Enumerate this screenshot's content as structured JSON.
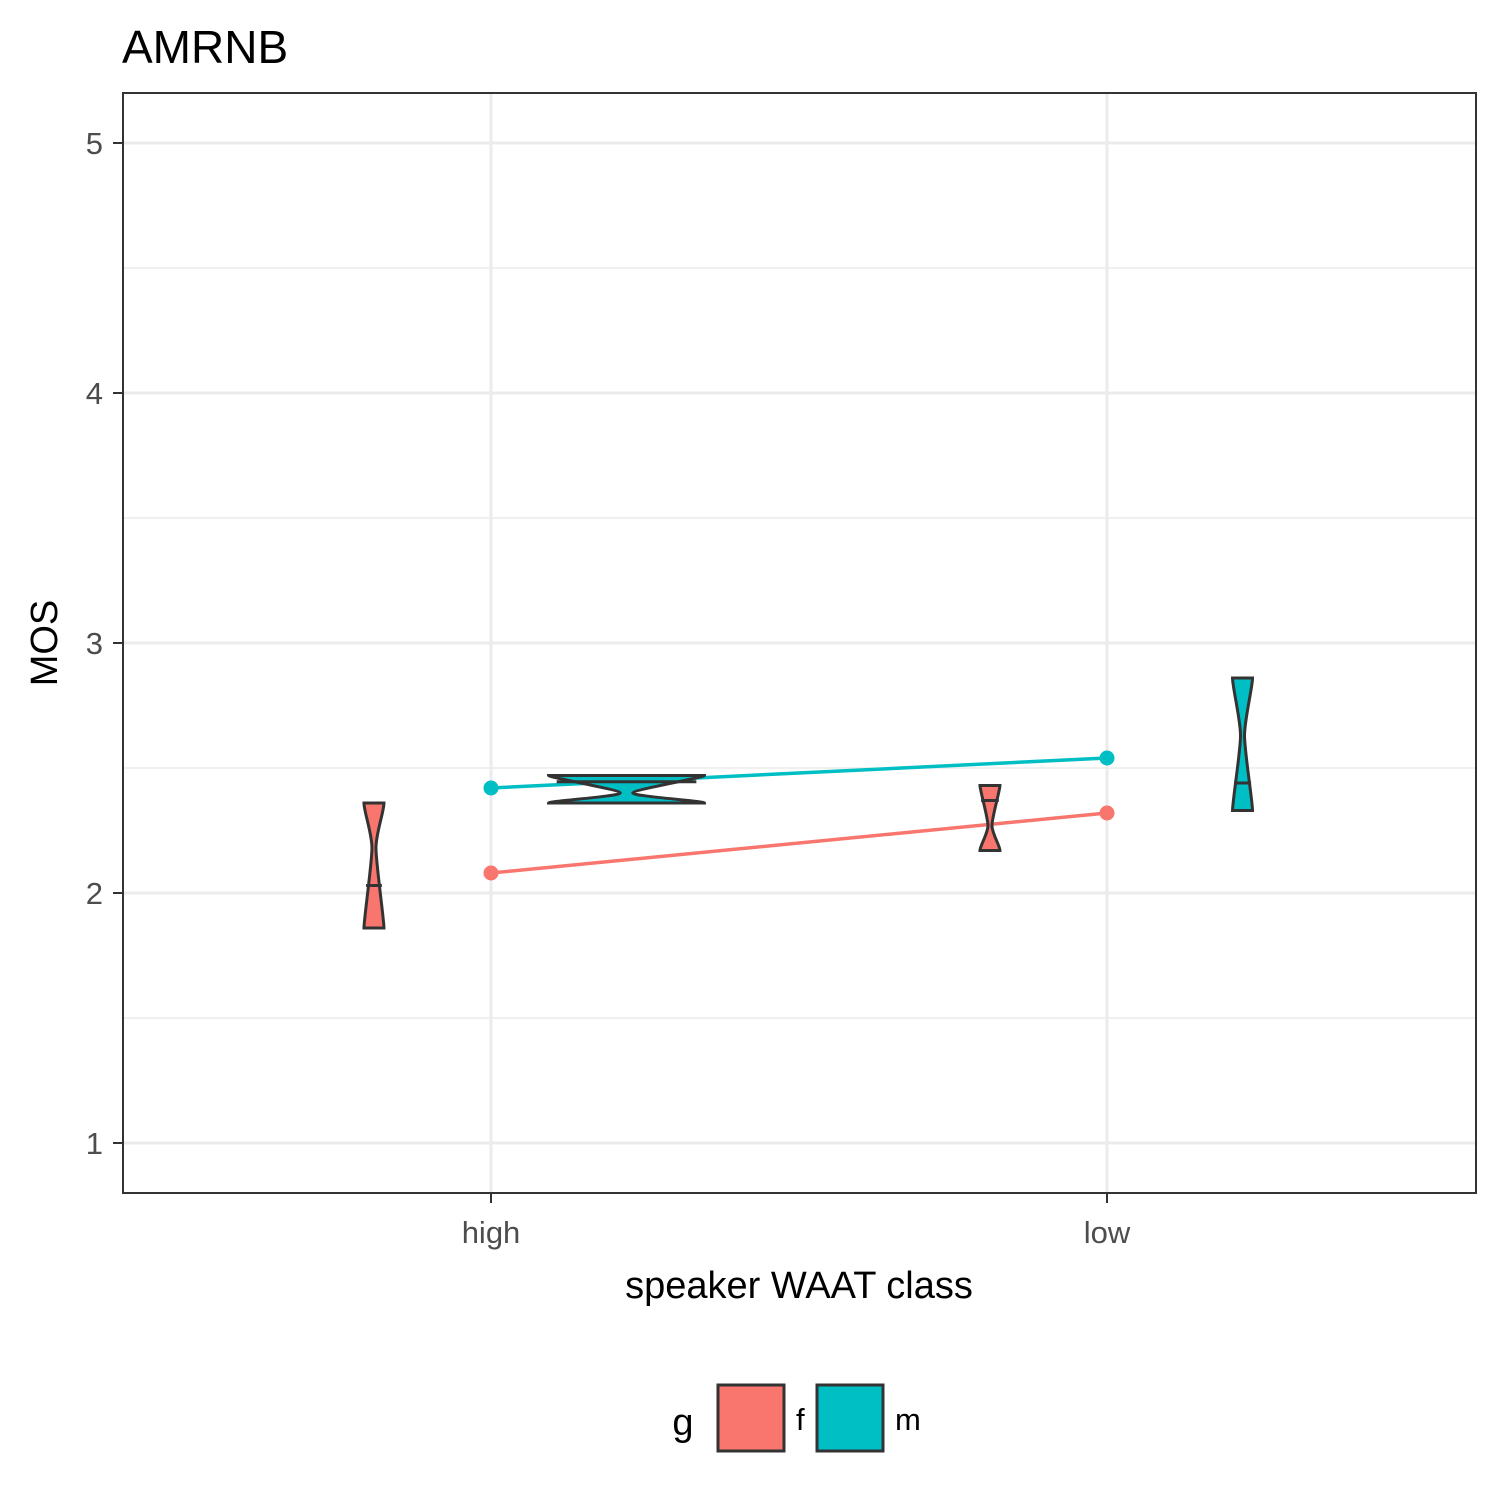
{
  "chart_data": {
    "type": "violin",
    "title": "AMRNB",
    "xlabel": "speaker WAAT class",
    "ylabel": "MOS",
    "categories": [
      "high",
      "low"
    ],
    "ylim": [
      0.8,
      5.2
    ],
    "yticks": [
      1,
      2,
      3,
      4,
      5
    ],
    "grid": true,
    "legend": {
      "title": "g",
      "position": "bottom",
      "entries": [
        "f",
        "m"
      ]
    },
    "colors": {
      "f": "#F8766D",
      "m": "#00BFC4"
    },
    "series": [
      {
        "name": "f",
        "color": "#F8766D",
        "means": [
          2.08,
          2.32
        ],
        "violins": [
          {
            "category": "high",
            "min": 1.86,
            "max": 2.36,
            "median": 2.03,
            "pinch": 2.18,
            "offset": -0.19
          },
          {
            "category": "low",
            "min": 2.17,
            "max": 2.43,
            "median": 2.37,
            "pinch": 2.27,
            "offset": -0.19
          }
        ]
      },
      {
        "name": "m",
        "color": "#00BFC4",
        "means": [
          2.42,
          2.54
        ],
        "violins": [
          {
            "category": "high",
            "min": 2.36,
            "max": 2.47,
            "median": 2.445,
            "pinch": 2.4,
            "offset": 0.22
          },
          {
            "category": "low",
            "min": 2.33,
            "max": 2.86,
            "median": 2.44,
            "pinch": 2.63,
            "offset": 0.22
          }
        ]
      }
    ]
  }
}
